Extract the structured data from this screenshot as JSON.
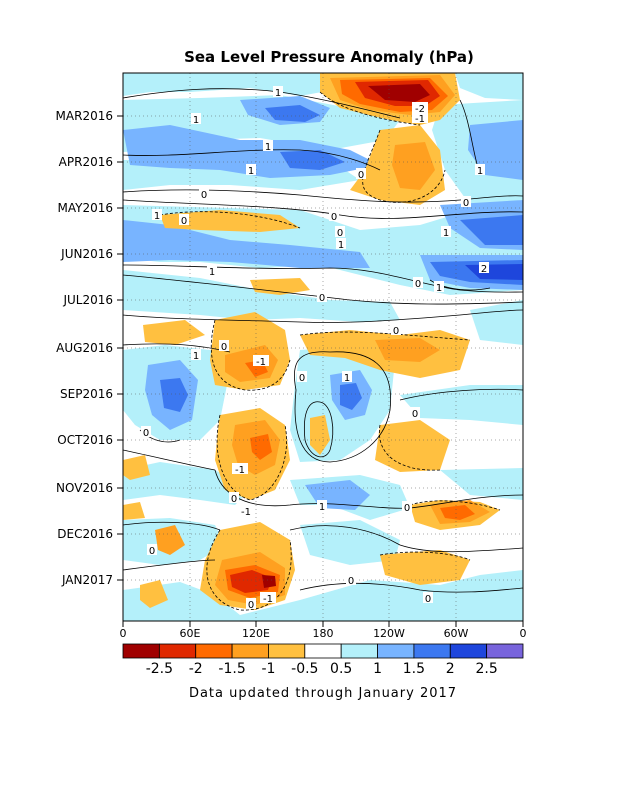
{
  "chart_data": {
    "type": "heatmap",
    "title": "Sea Level Pressure Anomaly (hPa)",
    "subtitle": "",
    "footer": "Data updated through January 2017",
    "x_ticks": [
      "0",
      "60E",
      "120E",
      "180",
      "120W",
      "60W",
      "0"
    ],
    "y_ticks": [
      "MAR2016",
      "APR2016",
      "MAY2016",
      "JUN2016",
      "JUL2016",
      "AUG2016",
      "SEP2016",
      "OCT2016",
      "NOV2016",
      "DEC2016",
      "JAN2017"
    ],
    "colorbar": {
      "labels": [
        "-2.5",
        "-2",
        "-1.5",
        "-1",
        "-0.5",
        "0.5",
        "1",
        "1.5",
        "2",
        "2.5"
      ],
      "colors": [
        "#a00000",
        "#e02800",
        "#ff6a00",
        "#ffa020",
        "#ffc040",
        "#ffffff",
        "#b4f0fa",
        "#78b4ff",
        "#3c78f0",
        "#1e46dc",
        "#7864dc"
      ]
    },
    "contour_labels": [
      {
        "text": "1"
      },
      {
        "text": "-2"
      },
      {
        "text": "-1"
      },
      {
        "text": "1"
      },
      {
        "text": "1"
      },
      {
        "text": "1"
      },
      {
        "text": "1"
      },
      {
        "text": "0"
      },
      {
        "text": "0"
      },
      {
        "text": "0"
      },
      {
        "text": "1"
      },
      {
        "text": "0"
      },
      {
        "text": "0"
      },
      {
        "text": "1"
      },
      {
        "text": "0"
      },
      {
        "text": "1"
      },
      {
        "text": "1"
      },
      {
        "text": "2"
      },
      {
        "text": "1"
      },
      {
        "text": "0"
      },
      {
        "text": "0"
      },
      {
        "text": "0"
      },
      {
        "text": "1"
      },
      {
        "text": "0"
      },
      {
        "text": "-1"
      },
      {
        "text": "0"
      },
      {
        "text": "0"
      },
      {
        "text": "1"
      },
      {
        "text": "0"
      },
      {
        "text": "-1"
      },
      {
        "text": "0"
      },
      {
        "text": "-1"
      },
      {
        "text": "1"
      },
      {
        "text": "0"
      },
      {
        "text": "0"
      },
      {
        "text": "0"
      },
      {
        "text": "0"
      },
      {
        "text": "0"
      },
      {
        "text": "-1"
      }
    ]
  }
}
